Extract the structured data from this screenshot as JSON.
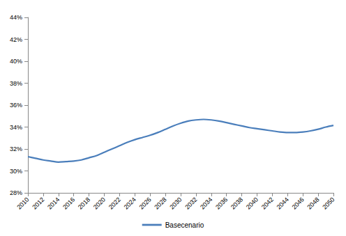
{
  "chart_data": {
    "type": "line",
    "x": [
      2010,
      2011,
      2012,
      2013,
      2014,
      2015,
      2016,
      2017,
      2018,
      2019,
      2020,
      2021,
      2022,
      2023,
      2024,
      2025,
      2026,
      2027,
      2028,
      2029,
      2030,
      2031,
      2032,
      2033,
      2034,
      2035,
      2036,
      2037,
      2038,
      2039,
      2040,
      2041,
      2042,
      2043,
      2044,
      2045,
      2046,
      2047,
      2048,
      2049,
      2050
    ],
    "series": [
      {
        "name": "Basecenario",
        "color": "#4a7ebb",
        "line_style": "solid",
        "values": [
          31.3,
          31.15,
          31.0,
          30.9,
          30.8,
          30.85,
          30.9,
          31.0,
          31.2,
          31.4,
          31.7,
          32.0,
          32.3,
          32.6,
          32.85,
          33.05,
          33.25,
          33.5,
          33.8,
          34.1,
          34.35,
          34.55,
          34.65,
          34.7,
          34.65,
          34.55,
          34.4,
          34.25,
          34.1,
          33.95,
          33.85,
          33.75,
          33.65,
          33.55,
          33.5,
          33.5,
          33.55,
          33.65,
          33.8,
          34.0,
          34.15
        ]
      }
    ],
    "xlim": [
      2010,
      2050
    ],
    "xticks": [
      2010,
      2012,
      2014,
      2016,
      2018,
      2020,
      2022,
      2024,
      2026,
      2028,
      2030,
      2032,
      2034,
      2036,
      2038,
      2040,
      2042,
      2044,
      2046,
      2048,
      2050
    ],
    "ylim": [
      28,
      44
    ],
    "yticks": [
      {
        "value": 28,
        "label": "28%"
      },
      {
        "value": 30,
        "label": "30%"
      },
      {
        "value": 32,
        "label": "32%"
      },
      {
        "value": 34,
        "label": "34%"
      },
      {
        "value": 36,
        "label": "36%"
      },
      {
        "value": 38,
        "label": "38%"
      },
      {
        "value": 40,
        "label": "40%"
      },
      {
        "value": 42,
        "label": "42%"
      },
      {
        "value": 44,
        "label": "44%"
      }
    ],
    "grid": false,
    "legend": "bottom"
  }
}
